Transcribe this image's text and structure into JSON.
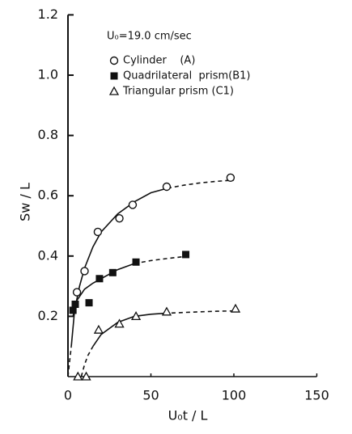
{
  "chart_data": {
    "type": "scatter",
    "annotation": "U₀=19.0 cm/sec",
    "xlabel": "U₀t / L",
    "ylabel": "Sw / L",
    "xlim": [
      0,
      150
    ],
    "xticks": [
      0,
      50,
      100,
      150
    ],
    "ylim": [
      0,
      1.2
    ],
    "yticks": [
      0.2,
      0.4,
      0.6,
      0.8,
      {
        "value": 1,
        "label": "1.0"
      },
      1.2
    ],
    "series": [
      {
        "name": "Cylinder    (A)",
        "color": "#111111",
        "marker": "circle",
        "x": [
          5.4,
          10,
          18,
          31,
          39,
          59.5,
          98
        ],
        "values": [
          0.28,
          0.35,
          0.48,
          0.525,
          0.57,
          0.63,
          0.66
        ],
        "segments": [
          {
            "style": "dashed",
            "x": [
              0,
              1,
              2
            ],
            "y": [
              0,
              0.05,
              0.1
            ]
          },
          {
            "style": "solid",
            "x": [
              2,
              4,
              7,
              10,
              15,
              20,
              30,
              40,
              50,
              60
            ],
            "y": [
              0.1,
              0.22,
              0.3,
              0.36,
              0.43,
              0.48,
              0.54,
              0.58,
              0.61,
              0.625
            ]
          },
          {
            "style": "dashed",
            "x": [
              60,
              70,
              80,
              90,
              100
            ],
            "y": [
              0.625,
              0.635,
              0.643,
              0.648,
              0.652
            ]
          }
        ]
      },
      {
        "name": "Quadrilateral  prism(B1)",
        "color": "#111111",
        "marker": "square",
        "x": [
          3,
          4.4,
          12.7,
          19,
          27,
          41,
          71
        ],
        "values": [
          0.22,
          0.24,
          0.245,
          0.325,
          0.345,
          0.38,
          0.405
        ],
        "segments": [
          {
            "style": "solid",
            "x": [
              3,
              5,
              10,
              15,
              20,
              30,
              40
            ],
            "y": [
              0.2,
              0.25,
              0.29,
              0.31,
              0.325,
              0.355,
              0.375
            ]
          },
          {
            "style": "dashed",
            "x": [
              40,
              50,
              60,
              70
            ],
            "y": [
              0.375,
              0.385,
              0.392,
              0.398
            ]
          }
        ]
      },
      {
        "name": "Triangular prism (C1)",
        "color": "#111111",
        "marker": "triangle",
        "x": [
          6,
          11,
          18.5,
          31,
          41,
          59.5,
          101
        ],
        "values": [
          0,
          0,
          0.155,
          0.175,
          0.2,
          0.215,
          0.225
        ],
        "segments": [
          {
            "style": "dashed",
            "x": [
              8,
              10,
              12,
              15
            ],
            "y": [
              0,
              0.04,
              0.07,
              0.1
            ]
          },
          {
            "style": "solid",
            "x": [
              15,
              20,
              30,
              40,
              50,
              58
            ],
            "y": [
              0.1,
              0.14,
              0.18,
              0.2,
              0.207,
              0.21
            ]
          },
          {
            "style": "dashed",
            "x": [
              58,
              70,
              80,
              90,
              100
            ],
            "y": [
              0.21,
              0.213,
              0.215,
              0.217,
              0.218
            ]
          }
        ]
      }
    ]
  }
}
